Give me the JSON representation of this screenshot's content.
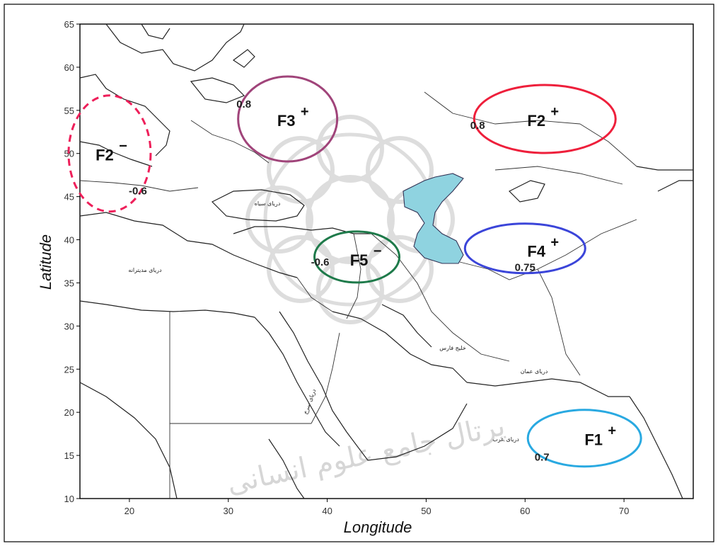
{
  "axes": {
    "xlabel": "Longitude",
    "ylabel": "Latitude",
    "x_ticks": [
      "20",
      "30",
      "40",
      "50",
      "60",
      "70"
    ],
    "y_ticks": [
      "65",
      "60",
      "55",
      "50",
      "45",
      "40",
      "35",
      "30",
      "25",
      "20",
      "15",
      "10"
    ],
    "xlim": [
      15,
      77
    ],
    "ylim": [
      10,
      65
    ]
  },
  "features": [
    {
      "label": "F1",
      "sign": "+",
      "value": "0.7",
      "color": "#29a9e1",
      "dashed": false,
      "lon": 66,
      "lat": 17
    },
    {
      "label": "F2",
      "sign": "+",
      "value": "0.8",
      "color": "#ee1f3b",
      "dashed": false,
      "lon": 62,
      "lat": 54
    },
    {
      "label": "F2",
      "sign": "−",
      "value": "-0.6",
      "color": "#ee1f5a",
      "dashed": true,
      "lon": 18,
      "lat": 50
    },
    {
      "label": "F3",
      "sign": "+",
      "value": "0.8",
      "color": "#a0447a",
      "dashed": false,
      "lon": 36,
      "lat": 54
    },
    {
      "label": "F4",
      "sign": "+",
      "value": "0.75",
      "color": "#3b45d9",
      "dashed": false,
      "lon": 60,
      "lat": 39
    },
    {
      "label": "F5",
      "sign": "−",
      "value": "-0.6",
      "color": "#1e7a4a",
      "dashed": false,
      "lon": 43,
      "lat": 38
    }
  ],
  "map_labels": [
    {
      "text": "دریای مدیترانه"
    },
    {
      "text": "دریای سیاه"
    },
    {
      "text": "خلیج فارس"
    },
    {
      "text": "دریای عمان"
    },
    {
      "text": "دریای عرب"
    },
    {
      "text": "دریای سرخ"
    }
  ],
  "watermark_text": "پرتال جامع علوم انسانی",
  "colors": {
    "caspian_fill": "#8fd3e0",
    "frame": "#000000",
    "coastline": "#222222"
  }
}
